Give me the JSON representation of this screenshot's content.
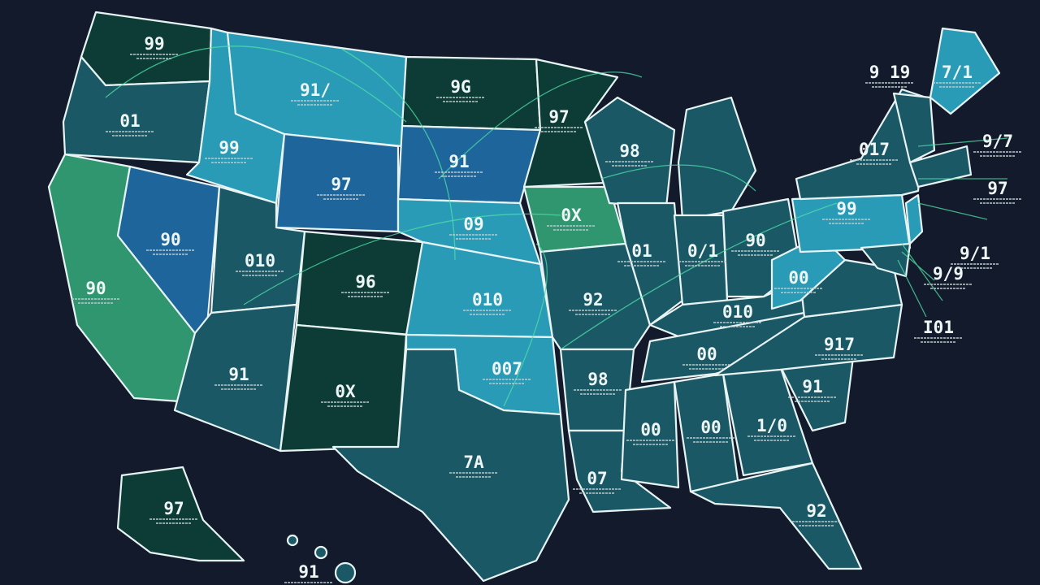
{
  "map": {
    "labels": [
      "99",
      "91/",
      "01",
      "9G",
      "97",
      "99",
      "97",
      "91",
      "9 19",
      "7/1",
      "9/7",
      "017",
      "98",
      "99",
      "97",
      "09",
      "0X",
      "90",
      "010",
      "01",
      "0/1",
      "90",
      "96",
      "00",
      "90",
      "010",
      "92",
      "9/1",
      "9/9",
      "010",
      "I01",
      "00",
      "917",
      "007",
      "91",
      "98",
      "91",
      "0X",
      "00",
      "00",
      "1/0",
      "7A",
      "07",
      "97",
      "92",
      "91"
    ]
  }
}
